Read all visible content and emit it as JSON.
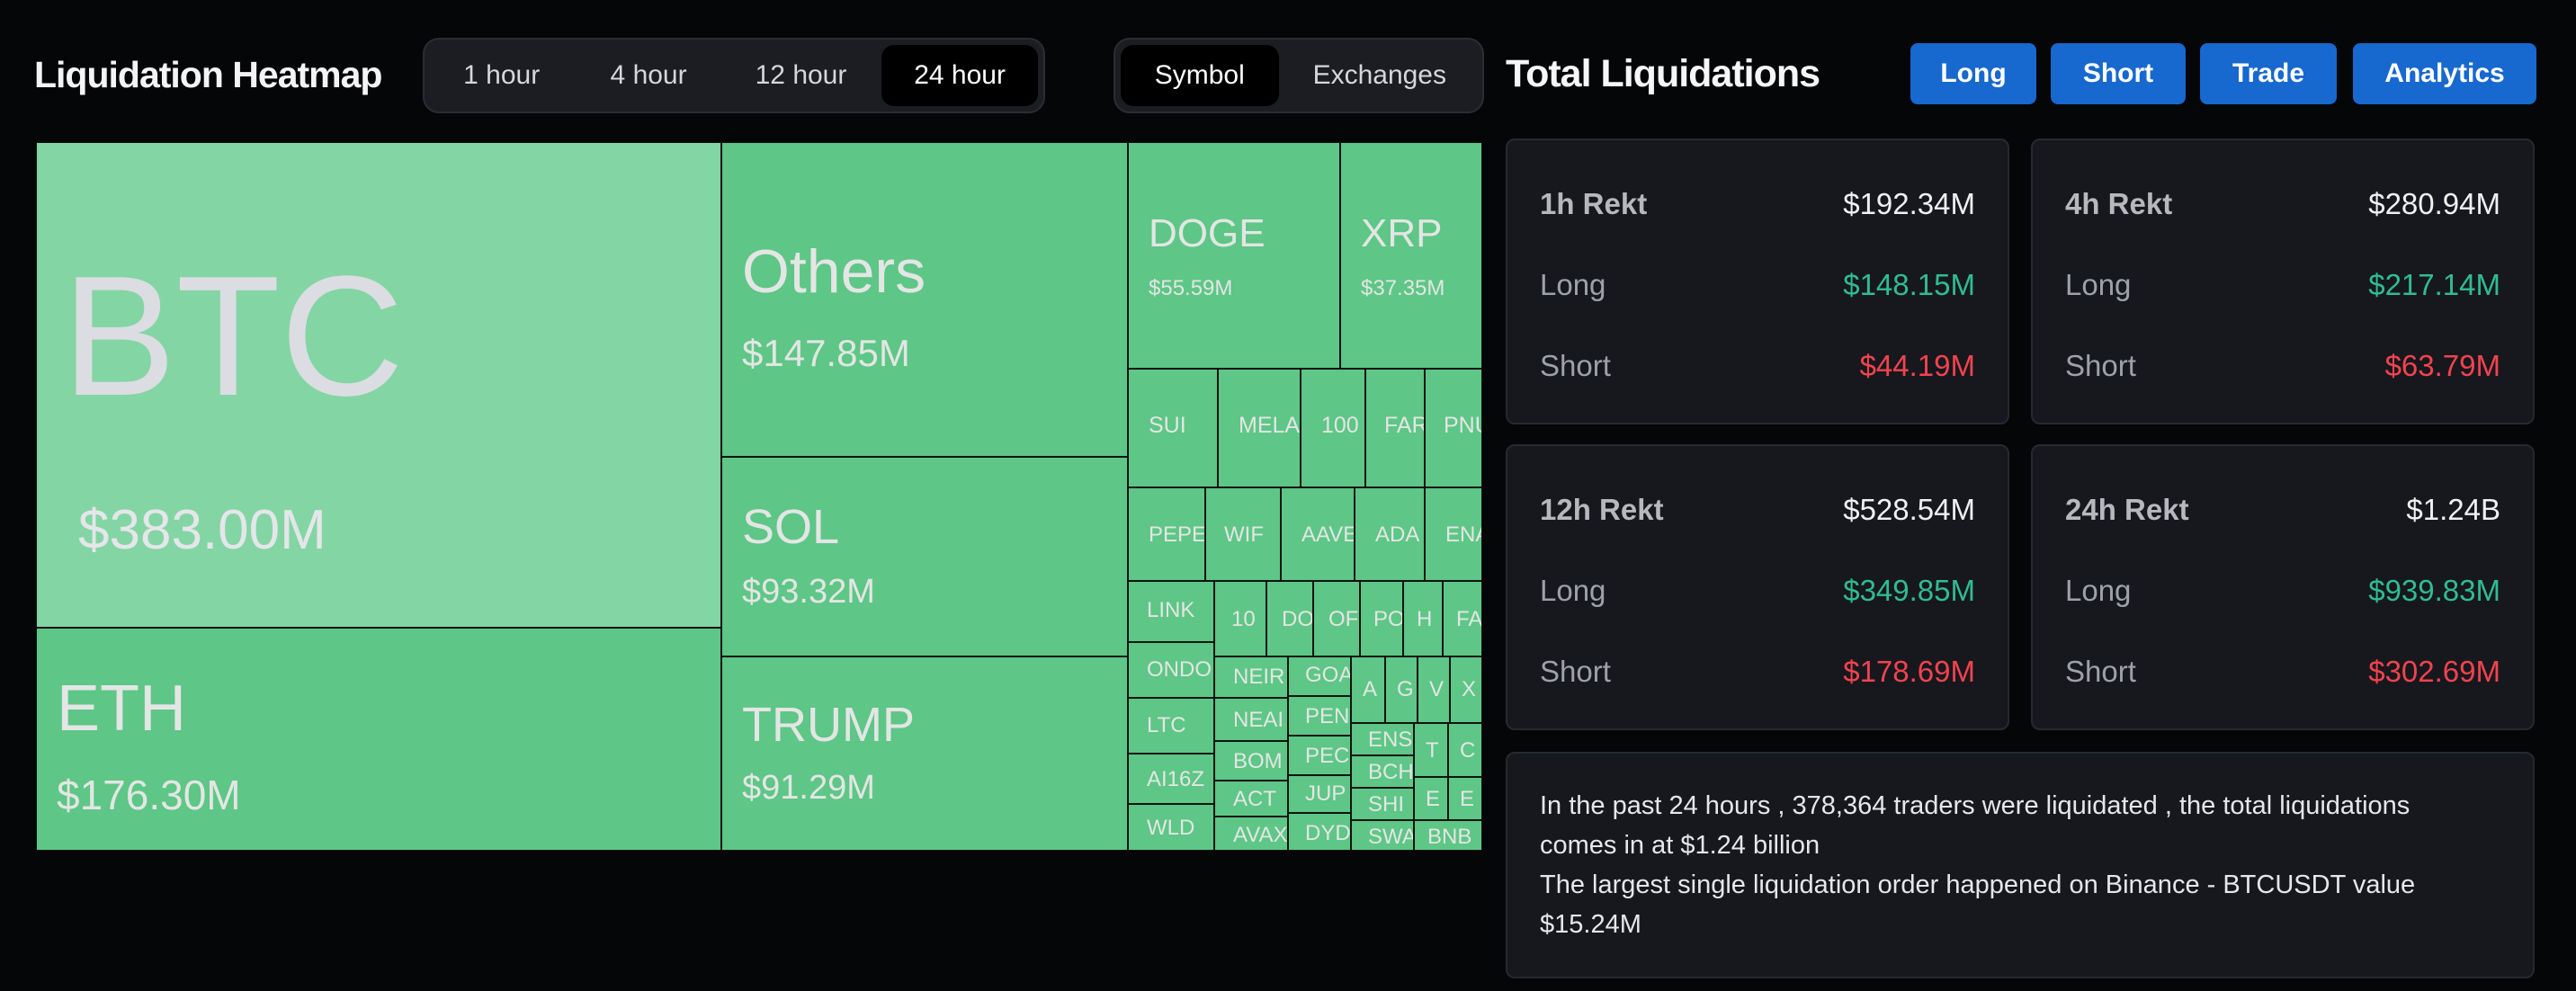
{
  "header": {
    "title": "Liquidation Heatmap",
    "time_tabs": [
      {
        "label": "1 hour",
        "active": false
      },
      {
        "label": "4 hour",
        "active": false
      },
      {
        "label": "12 hour",
        "active": false
      },
      {
        "label": "24 hour",
        "active": true
      }
    ],
    "view_tabs": [
      {
        "label": "Symbol",
        "active": true
      },
      {
        "label": "Exchanges",
        "active": false
      }
    ]
  },
  "right_header": {
    "title": "Total Liquidations",
    "buttons": [
      "Long",
      "Short",
      "Trade",
      "Analytics"
    ]
  },
  "heatmap": {
    "cells": [
      {
        "symbol": "BTC",
        "value": "$383.00M"
      },
      {
        "symbol": "ETH",
        "value": "$176.30M"
      },
      {
        "symbol": "Others",
        "value": "$147.85M"
      },
      {
        "symbol": "SOL",
        "value": "$93.32M"
      },
      {
        "symbol": "TRUMP",
        "value": "$91.29M"
      },
      {
        "symbol": "DOGE",
        "value": "$55.59M"
      },
      {
        "symbol": "XRP",
        "value": "$37.35M"
      },
      {
        "symbol": "SUI"
      },
      {
        "symbol": "MELA"
      },
      {
        "symbol": "100"
      },
      {
        "symbol": "FAR"
      },
      {
        "symbol": "PNU"
      },
      {
        "symbol": "PEPE"
      },
      {
        "symbol": "WIF"
      },
      {
        "symbol": "AAVE"
      },
      {
        "symbol": "ADA"
      },
      {
        "symbol": "ENA"
      },
      {
        "symbol": "LINK"
      },
      {
        "symbol": "10"
      },
      {
        "symbol": "DO"
      },
      {
        "symbol": "OF"
      },
      {
        "symbol": "PO"
      },
      {
        "symbol": "H"
      },
      {
        "symbol": "FA"
      },
      {
        "symbol": "ONDO"
      },
      {
        "symbol": "LTC"
      },
      {
        "symbol": "AI16Z"
      },
      {
        "symbol": "WLD"
      },
      {
        "symbol": "NEIR"
      },
      {
        "symbol": "NEAI"
      },
      {
        "symbol": "BOM"
      },
      {
        "symbol": "ACT"
      },
      {
        "symbol": "AVAX"
      },
      {
        "symbol": "GOA"
      },
      {
        "symbol": "PEN"
      },
      {
        "symbol": "PEC"
      },
      {
        "symbol": "JUP"
      },
      {
        "symbol": "DYD"
      },
      {
        "symbol": "A"
      },
      {
        "symbol": "G"
      },
      {
        "symbol": "V"
      },
      {
        "symbol": "X"
      },
      {
        "symbol": "ENS"
      },
      {
        "symbol": "BCH"
      },
      {
        "symbol": "SHI"
      },
      {
        "symbol": "SWA"
      },
      {
        "symbol": "T"
      },
      {
        "symbol": "C"
      },
      {
        "symbol": "E"
      },
      {
        "symbol": "E"
      },
      {
        "symbol": "BNB"
      }
    ]
  },
  "stats": [
    {
      "head_label": "1h Rekt",
      "head_value": "$192.34M",
      "long_label": "Long",
      "long_value": "$148.15M",
      "short_label": "Short",
      "short_value": "$44.19M"
    },
    {
      "head_label": "4h Rekt",
      "head_value": "$280.94M",
      "long_label": "Long",
      "long_value": "$217.14M",
      "short_label": "Short",
      "short_value": "$63.79M"
    },
    {
      "head_label": "12h Rekt",
      "head_value": "$528.54M",
      "long_label": "Long",
      "long_value": "$349.85M",
      "short_label": "Short",
      "short_value": "$178.69M"
    },
    {
      "head_label": "24h Rekt",
      "head_value": "$1.24B",
      "long_label": "Long",
      "long_value": "$939.83M",
      "short_label": "Short",
      "short_value": "$302.69M"
    }
  ],
  "summary": {
    "line1": "In the past 24 hours , 378,364 traders were liquidated , the total liquidations comes in at $1.24 billion",
    "line2": "The largest single liquidation order happened on Binance - BTCUSDT value $15.24M"
  },
  "colors": {
    "background": "#050608",
    "tile_green": "#5ec686",
    "tile_light": "#84d5a4",
    "long_green": "#31bc8f",
    "short_red": "#f1434f",
    "button_blue": "#1768cf"
  }
}
